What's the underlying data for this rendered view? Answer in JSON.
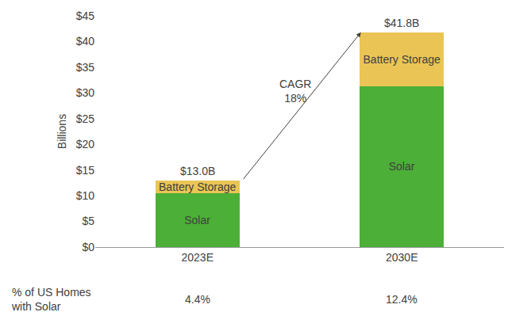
{
  "chart_data": {
    "type": "bar",
    "stacked": true,
    "grid": false,
    "categories": [
      "2023E",
      "2030E"
    ],
    "y_label": "Billions",
    "series": [
      {
        "name": "Solar",
        "color": "#4caf37",
        "values": [
          10.5,
          31.3
        ]
      },
      {
        "name": "Battery Storage",
        "color": "#eac556",
        "values": [
          2.5,
          10.5
        ]
      }
    ],
    "totals": {
      "values": [
        13.0,
        41.8
      ],
      "value_labels": [
        "$13.0B",
        "$41.8B"
      ]
    },
    "annotations": [
      {
        "text": [
          "CAGR",
          "18%"
        ]
      }
    ],
    "homes_with_solar": {
      "label": [
        "% of US Homes",
        "with Solar"
      ],
      "texts": [
        "4.4%",
        "12.4%"
      ]
    },
    "ylim": [
      0,
      45
    ],
    "yticks": [
      {
        "value": 0,
        "label": "$0"
      },
      {
        "value": 5,
        "label": "$5"
      },
      {
        "value": 10,
        "label": "$10"
      },
      {
        "value": 15,
        "label": "$15"
      },
      {
        "value": 20,
        "label": "$20"
      },
      {
        "value": 25,
        "label": "$25"
      },
      {
        "value": 30,
        "label": "$30"
      },
      {
        "value": 35,
        "label": "$35"
      },
      {
        "value": 40,
        "label": "$40"
      },
      {
        "value": 45,
        "label": "$45"
      }
    ]
  }
}
